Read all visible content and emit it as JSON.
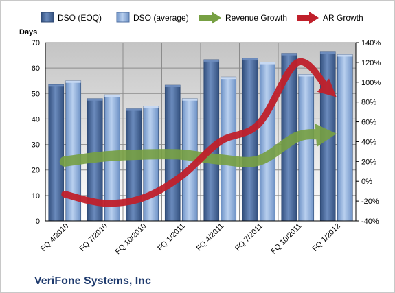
{
  "chart_data": {
    "type": "bar",
    "categories": [
      "FQ 4/2010",
      "FQ 7/2010",
      "FQ 10/2010",
      "FQ 1/2011",
      "FQ 4/2011",
      "FQ 7/2011",
      "FQ 10/2011",
      "FQ 1/2012"
    ],
    "y_unit_label": "Days",
    "ylim": [
      0,
      70
    ],
    "y_ticks": [
      "0",
      "10",
      "20",
      "30",
      "40",
      "50",
      "60",
      "70"
    ],
    "y2lim": [
      -40,
      140
    ],
    "y2_ticks": [
      "-40%",
      "-20%",
      "0%",
      "20%",
      "40%",
      "60%",
      "80%",
      "100%",
      "120%",
      "140%"
    ],
    "series": [
      {
        "name": "DSO (EOQ)",
        "kind": "bar",
        "axis": "left",
        "color": "#4f6fa0",
        "values": [
          53.5,
          48,
          44,
          53.3,
          63.3,
          63.8,
          65.8,
          66.3
        ]
      },
      {
        "name": "DSO (average)",
        "kind": "bar",
        "axis": "left",
        "color": "#8fb0dd",
        "values": [
          55,
          49.5,
          45,
          48,
          56.5,
          62.3,
          57.5,
          65.3
        ]
      },
      {
        "name": "Revenue Growth",
        "kind": "line",
        "axis": "right",
        "color": "#77a043",
        "values": [
          20,
          25,
          27,
          27,
          22,
          21,
          45,
          48
        ]
      },
      {
        "name": "AR Growth",
        "kind": "line",
        "axis": "right",
        "color": "#c0202b",
        "values": [
          -13,
          -22,
          -17,
          5,
          40,
          58,
          120,
          85
        ]
      }
    ],
    "grid": true,
    "legend": "top",
    "plot_background": "#c0c0c0",
    "company": "VeriFone Systems, Inc"
  }
}
